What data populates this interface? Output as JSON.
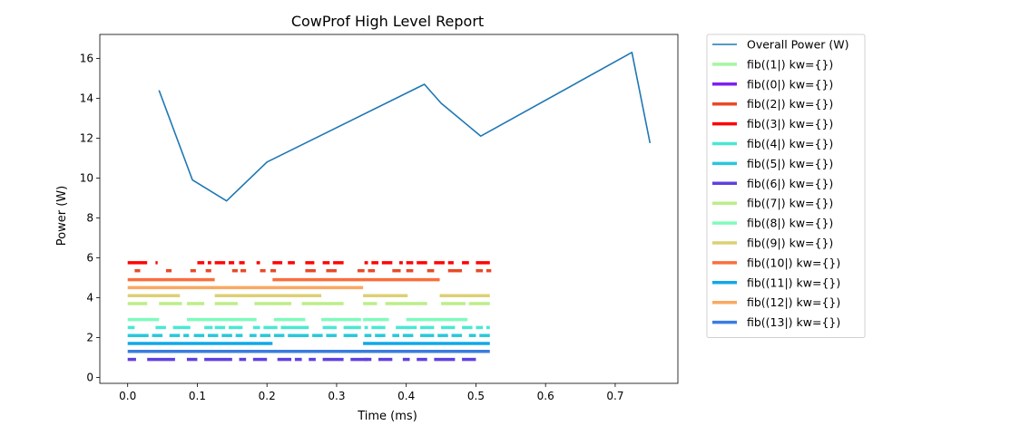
{
  "chart_data": {
    "type": "line",
    "title": "CowProf High Level Report",
    "xlabel": "Time (ms)",
    "ylabel": "Power (W)",
    "xlim": [
      -0.04,
      0.79
    ],
    "ylim": [
      -0.3,
      17.2
    ],
    "xticks": [
      0.0,
      0.1,
      0.2,
      0.3,
      0.4,
      0.5,
      0.6,
      0.7
    ],
    "yticks": [
      0,
      2,
      4,
      6,
      8,
      10,
      12,
      14,
      16
    ],
    "grid": false,
    "legend_position": "outside-right",
    "power_series": {
      "name": "Overall Power (W)",
      "color": "#1f77b4",
      "x": [
        0.045,
        0.093,
        0.142,
        0.2,
        0.426,
        0.45,
        0.507,
        0.724,
        0.75
      ],
      "y": [
        14.4,
        9.9,
        8.85,
        10.8,
        14.7,
        13.75,
        12.1,
        16.3,
        11.75
      ]
    },
    "call_series": [
      {
        "name": "fib((1|) kw={})",
        "color": "#a4f79f",
        "y": 5.75,
        "segments": []
      },
      {
        "name": "fib((0|) kw={})",
        "color": "#7f1fef",
        "y": 5.75,
        "segments": []
      },
      {
        "name": "fib((2|) kw={})",
        "color": "#e84a27",
        "y": 5.35,
        "segments": [
          [
            0.01,
            0.018
          ],
          [
            0.055,
            0.063
          ],
          [
            0.09,
            0.098
          ],
          [
            0.112,
            0.12
          ],
          [
            0.15,
            0.158
          ],
          [
            0.162,
            0.17
          ],
          [
            0.19,
            0.198
          ],
          [
            0.205,
            0.213
          ],
          [
            0.255,
            0.27
          ],
          [
            0.285,
            0.3
          ],
          [
            0.33,
            0.34
          ],
          [
            0.345,
            0.355
          ],
          [
            0.38,
            0.392
          ],
          [
            0.4,
            0.41
          ],
          [
            0.43,
            0.44
          ],
          [
            0.46,
            0.48
          ],
          [
            0.5,
            0.51
          ],
          [
            0.515,
            0.522
          ]
        ]
      },
      {
        "name": "fib((3|) kw={})",
        "color": "#ff0000",
        "y": 5.75,
        "segments": [
          [
            0.0,
            0.028
          ],
          [
            0.04,
            0.043
          ],
          [
            0.1,
            0.11
          ],
          [
            0.115,
            0.12
          ],
          [
            0.125,
            0.14
          ],
          [
            0.145,
            0.153
          ],
          [
            0.16,
            0.168
          ],
          [
            0.185,
            0.19
          ],
          [
            0.208,
            0.222
          ],
          [
            0.23,
            0.24
          ],
          [
            0.255,
            0.268
          ],
          [
            0.28,
            0.29
          ],
          [
            0.295,
            0.31
          ],
          [
            0.34,
            0.345
          ],
          [
            0.35,
            0.36
          ],
          [
            0.365,
            0.38
          ],
          [
            0.39,
            0.395
          ],
          [
            0.4,
            0.41
          ],
          [
            0.415,
            0.43
          ],
          [
            0.44,
            0.455
          ],
          [
            0.46,
            0.468
          ],
          [
            0.48,
            0.49
          ],
          [
            0.5,
            0.52
          ]
        ]
      },
      {
        "name": "fib((4|) kw={})",
        "color": "#49e8d3",
        "y": 2.5,
        "segments": [
          [
            0.0,
            0.01
          ],
          [
            0.04,
            0.055
          ],
          [
            0.065,
            0.09
          ],
          [
            0.11,
            0.122
          ],
          [
            0.125,
            0.14
          ],
          [
            0.145,
            0.165
          ],
          [
            0.18,
            0.19
          ],
          [
            0.195,
            0.215
          ],
          [
            0.22,
            0.26
          ],
          [
            0.28,
            0.3
          ],
          [
            0.31,
            0.335
          ],
          [
            0.34,
            0.345
          ],
          [
            0.35,
            0.37
          ],
          [
            0.385,
            0.415
          ],
          [
            0.42,
            0.44
          ],
          [
            0.45,
            0.47
          ],
          [
            0.48,
            0.495
          ],
          [
            0.5,
            0.51
          ],
          [
            0.515,
            0.52
          ]
        ]
      },
      {
        "name": "fib((5|) kw={})",
        "color": "#27c8db",
        "y": 2.1,
        "segments": [
          [
            0.0,
            0.03
          ],
          [
            0.035,
            0.05
          ],
          [
            0.06,
            0.075
          ],
          [
            0.08,
            0.088
          ],
          [
            0.095,
            0.11
          ],
          [
            0.115,
            0.13
          ],
          [
            0.135,
            0.15
          ],
          [
            0.155,
            0.165
          ],
          [
            0.175,
            0.185
          ],
          [
            0.19,
            0.205
          ],
          [
            0.21,
            0.225
          ],
          [
            0.23,
            0.26
          ],
          [
            0.265,
            0.28
          ],
          [
            0.285,
            0.3
          ],
          [
            0.31,
            0.33
          ],
          [
            0.34,
            0.35
          ],
          [
            0.355,
            0.37
          ],
          [
            0.38,
            0.39
          ],
          [
            0.395,
            0.41
          ],
          [
            0.42,
            0.44
          ],
          [
            0.445,
            0.46
          ],
          [
            0.465,
            0.48
          ],
          [
            0.49,
            0.5
          ],
          [
            0.505,
            0.52
          ]
        ]
      },
      {
        "name": "fib((6|) kw={})",
        "color": "#6040e0",
        "y": 0.9,
        "segments": [
          [
            0.0,
            0.012
          ],
          [
            0.028,
            0.068
          ],
          [
            0.085,
            0.1
          ],
          [
            0.11,
            0.15
          ],
          [
            0.16,
            0.17
          ],
          [
            0.18,
            0.2
          ],
          [
            0.215,
            0.235
          ],
          [
            0.24,
            0.25
          ],
          [
            0.26,
            0.27
          ],
          [
            0.28,
            0.31
          ],
          [
            0.32,
            0.345
          ],
          [
            0.34,
            0.35
          ],
          [
            0.36,
            0.38
          ],
          [
            0.395,
            0.405
          ],
          [
            0.415,
            0.43
          ],
          [
            0.44,
            0.47
          ],
          [
            0.48,
            0.5
          ]
        ]
      },
      {
        "name": "fib((7|) kw={})",
        "color": "#bcee88",
        "y": 3.7,
        "segments": [
          [
            0.0,
            0.028
          ],
          [
            0.045,
            0.078
          ],
          [
            0.085,
            0.11
          ],
          [
            0.125,
            0.158
          ],
          [
            0.182,
            0.235
          ],
          [
            0.25,
            0.31
          ],
          [
            0.338,
            0.358
          ],
          [
            0.37,
            0.43
          ],
          [
            0.45,
            0.485
          ],
          [
            0.49,
            0.52
          ]
        ]
      },
      {
        "name": "fib((8|) kw={})",
        "color": "#7efcbc",
        "y": 2.9,
        "segments": [
          [
            0.0,
            0.045
          ],
          [
            0.085,
            0.185
          ],
          [
            0.21,
            0.255
          ],
          [
            0.278,
            0.335
          ],
          [
            0.338,
            0.375
          ],
          [
            0.4,
            0.488
          ]
        ]
      },
      {
        "name": "fib((9|) kw={})",
        "color": "#dcd074",
        "y": 4.1,
        "segments": [
          [
            0.0,
            0.075
          ],
          [
            0.125,
            0.278
          ],
          [
            0.338,
            0.402
          ],
          [
            0.448,
            0.52
          ]
        ]
      },
      {
        "name": "fib((10|) kw={})",
        "color": "#fa6e3c",
        "y": 4.9,
        "segments": [
          [
            0.0,
            0.125
          ],
          [
            0.208,
            0.448
          ]
        ]
      },
      {
        "name": "fib((11|) kw={})",
        "color": "#10a8e8",
        "y": 1.7,
        "segments": [
          [
            0.0,
            0.208
          ],
          [
            0.338,
            0.52
          ]
        ]
      },
      {
        "name": "fib((12|) kw={})",
        "color": "#faa860",
        "y": 4.5,
        "segments": [
          [
            0.0,
            0.338
          ]
        ]
      },
      {
        "name": "fib((13|) kw={})",
        "color": "#3a7ce0",
        "y": 1.3,
        "segments": [
          [
            0.0,
            0.52
          ]
        ]
      }
    ]
  }
}
